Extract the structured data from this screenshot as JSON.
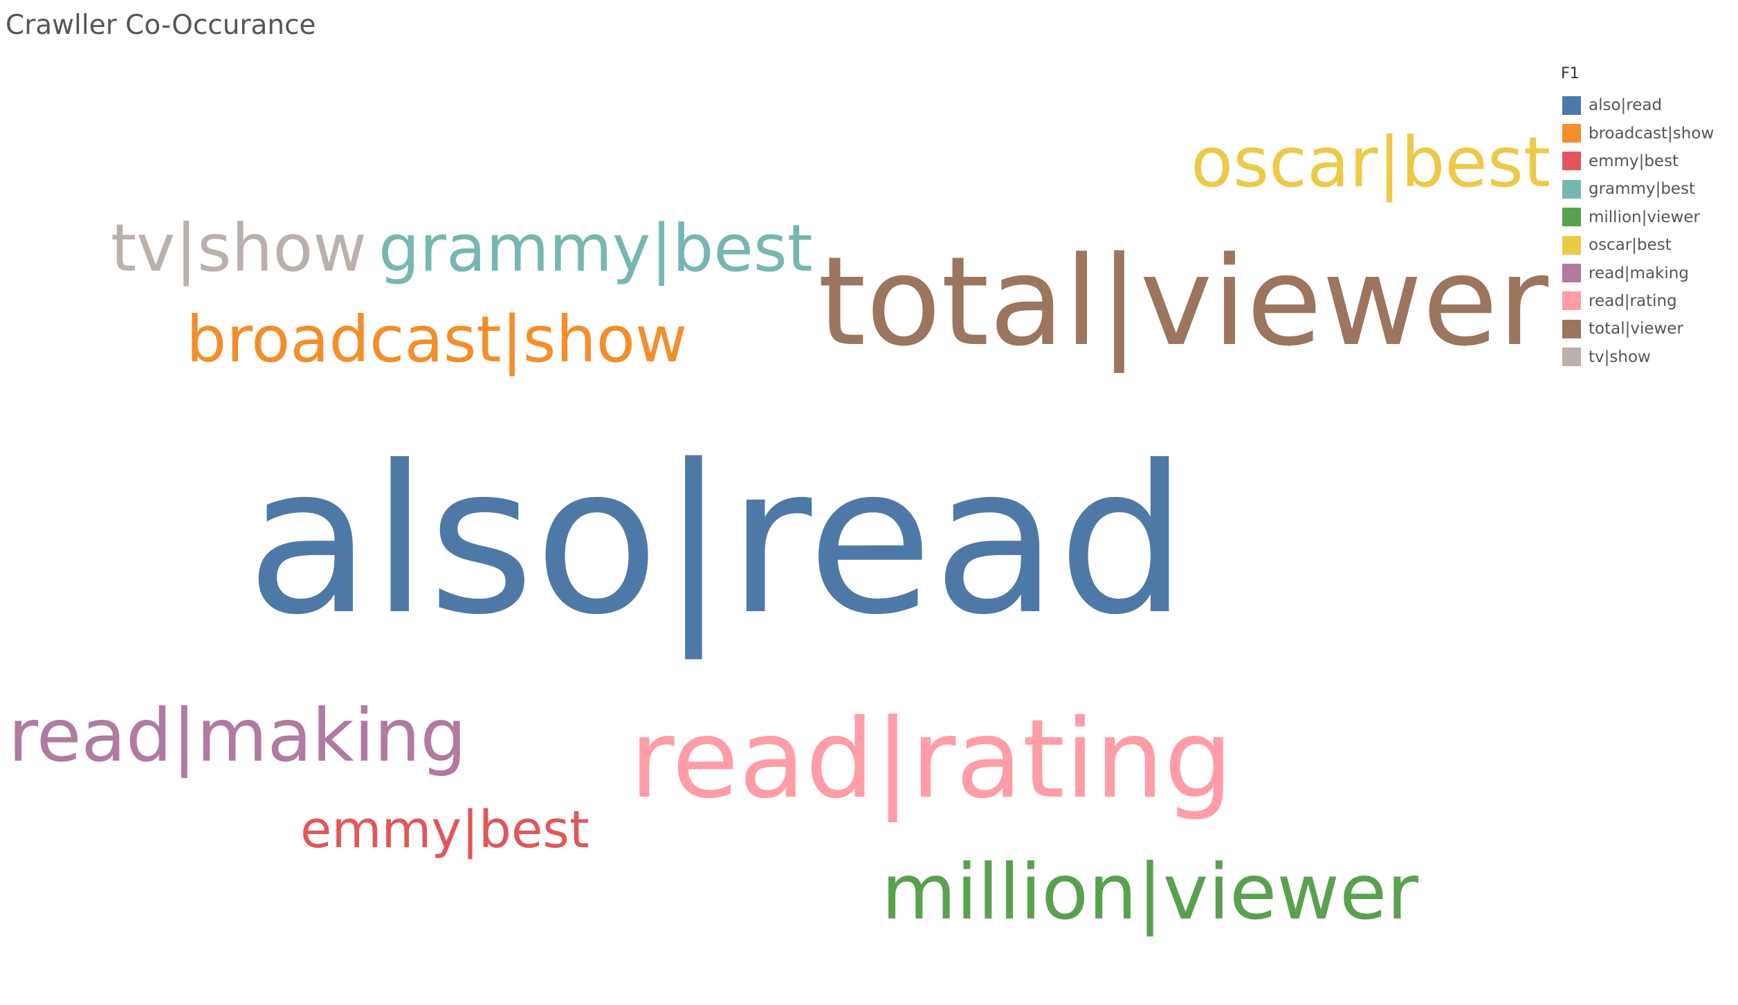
{
  "chart_data": {
    "type": "word-cloud",
    "title": "Crawller Co-Occurance",
    "legend": {
      "title": "F1",
      "placement": "top-right"
    },
    "words": [
      {
        "text": "also|read",
        "color": "#4e79a7",
        "weight": 100
      },
      {
        "text": "broadcast|show",
        "color": "#f28e2b",
        "weight": 29
      },
      {
        "text": "emmy|best",
        "color": "#e15759",
        "weight": 22
      },
      {
        "text": "grammy|best",
        "color": "#76b7b2",
        "weight": 31
      },
      {
        "text": "million|viewer",
        "color": "#59a14f",
        "weight": 33
      },
      {
        "text": "oscar|best",
        "color": "#edc948",
        "weight": 31
      },
      {
        "text": "read|making",
        "color": "#b07aa1",
        "weight": 31
      },
      {
        "text": "read|rating",
        "color": "#ff9da7",
        "weight": 47
      },
      {
        "text": "total|viewer",
        "color": "#9c755f",
        "weight": 55
      },
      {
        "text": "tv|show",
        "color": "#bab0ac",
        "weight": 31
      }
    ]
  }
}
